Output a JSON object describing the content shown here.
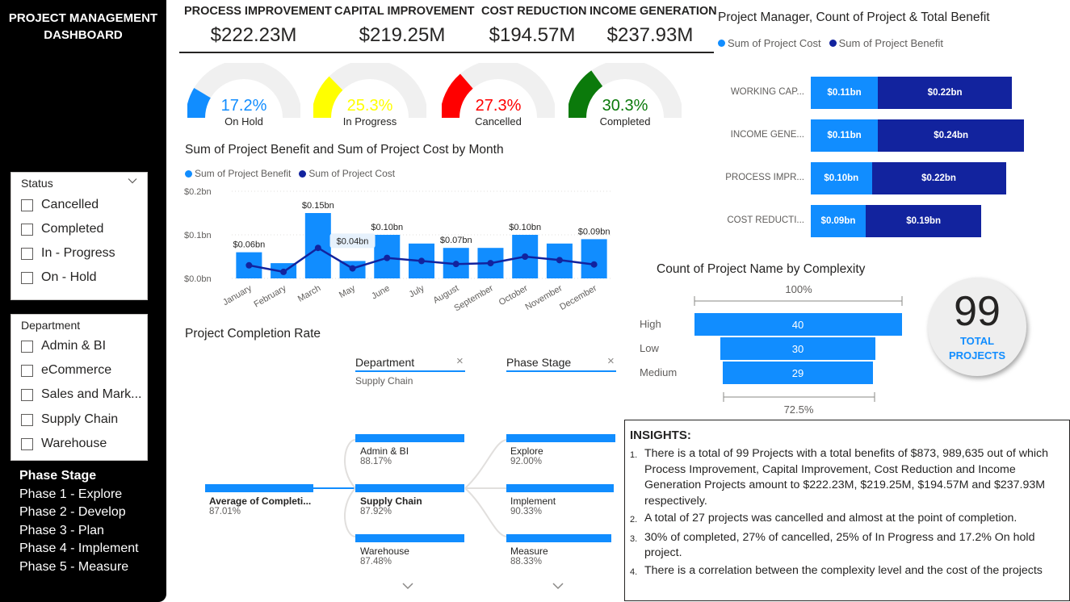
{
  "sidebar": {
    "title_line1": "PROJECT MANAGEMENT",
    "title_line2": "DASHBOARD",
    "status_slicer": {
      "header": "Status",
      "items": [
        {
          "label": "Cancelled"
        },
        {
          "label": "Completed"
        },
        {
          "label": "In - Progress"
        },
        {
          "label": "On - Hold"
        }
      ]
    },
    "department_slicer": {
      "header": "Department",
      "items": [
        {
          "label": "Admin & BI"
        },
        {
          "label": "eCommerce"
        },
        {
          "label": "Sales and Mark..."
        },
        {
          "label": "Supply Chain"
        },
        {
          "label": "Warehouse"
        }
      ]
    },
    "phase_stage": {
      "title": "Phase Stage",
      "items": [
        "Phase 1 - Explore",
        "Phase 2 - Develop",
        "Phase 3 - Plan",
        "Phase 4 - Implement",
        "Phase 5 - Measure"
      ]
    }
  },
  "kpis": [
    {
      "label": "PROCESS IMPROVEMENT",
      "value": "$222.23M"
    },
    {
      "label": "CAPITAL IMPROVEMENT",
      "value": "$219.25M"
    },
    {
      "label": "COST REDUCTION",
      "value": "$194.57M"
    },
    {
      "label": "INCOME GENERATION",
      "value": "$237.93M"
    }
  ],
  "gauges": [
    {
      "pct": "17.2%",
      "label": "On Hold",
      "fraction": 0.172,
      "color": "#118dff"
    },
    {
      "pct": "25.3%",
      "label": "In Progress",
      "fraction": 0.253,
      "color": "#ffff00"
    },
    {
      "pct": "27.3%",
      "label": "Cancelled",
      "fraction": 0.273,
      "color": "#ff0000"
    },
    {
      "pct": "30.3%",
      "label": "Completed",
      "fraction": 0.303,
      "color": "#0b7a0b"
    }
  ],
  "month_chart": {
    "title": "Sum of Project Benefit and Sum of Project Cost by Month",
    "legend": [
      "Sum of  Project Benefit",
      "Sum of  Project Cost"
    ]
  },
  "manager_chart": {
    "title": "Project Manager, Count of Project & Total Benefit",
    "legend": [
      "Sum of  Project Cost",
      "Sum of  Project Benefit"
    ]
  },
  "complexity_chart": {
    "title": "Count of Project Name by Complexity",
    "top_pct": "100%",
    "bottom_pct": "72.5%"
  },
  "total_projects": {
    "value": "99",
    "label_line1": "TOTAL",
    "label_line2": "PROJECTS"
  },
  "completion": {
    "title": "Project Completion Rate",
    "dept_header": "Department",
    "dept_filter": "Supply Chain",
    "phase_header": "Phase Stage",
    "close_glyph": "×",
    "root": {
      "name": "Average of Completi...",
      "value": "87.01%"
    },
    "departments": [
      {
        "name": "Admin & BI",
        "value": "88.17%"
      },
      {
        "name": "Supply Chain",
        "value": "87.92%"
      },
      {
        "name": "Warehouse",
        "value": "87.48%"
      }
    ],
    "phases": [
      {
        "name": "Explore",
        "value": "92.00%"
      },
      {
        "name": "Implement",
        "value": "90.33%"
      },
      {
        "name": "Measure",
        "value": "88.33%"
      }
    ]
  },
  "insights": {
    "title": "INSIGHTS:",
    "items": [
      "There is a total of 99 Projects with a total benefits of $873, 989,635 out of which Process Improvement, Capital Improvement, Cost Reduction and Income Generation Projects amount to $222.23M, $219.25M, $194.57M and $237.93M respectively.",
      "A total of 27 projects was cancelled and almost at the point of completion.",
      "30% of completed, 27% of cancelled, 25% of In Progress and 17.2% On hold project.",
      "There is a correlation between the complexity level and the cost of the projects"
    ]
  },
  "colors": {
    "accent_light": "#118dff",
    "accent_dark": "#12239e",
    "gauge_track": "#f0f0f0"
  },
  "chart_data": [
    {
      "type": "bar",
      "title": "Sum of Project Benefit and Sum of Project Cost by Month",
      "categories": [
        "January",
        "February",
        "March",
        "May",
        "June",
        "July",
        "August",
        "September",
        "October",
        "November",
        "December"
      ],
      "series": [
        {
          "name": "Sum of  Project Benefit",
          "kind": "bar",
          "color": "#118dff",
          "values": [
            0.06,
            0.035,
            0.15,
            0.04,
            0.1,
            0.08,
            0.07,
            0.07,
            0.1,
            0.08,
            0.09
          ]
        },
        {
          "name": "Sum of  Project Cost",
          "kind": "line",
          "color": "#12239e",
          "values": [
            0.03,
            0.015,
            0.07,
            0.023,
            0.047,
            0.04,
            0.033,
            0.035,
            0.05,
            0.042,
            0.032
          ]
        }
      ],
      "data_labels": [
        {
          "index": 0,
          "text": "$0.06bn"
        },
        {
          "index": 2,
          "text": "$0.15bn"
        },
        {
          "index": 3,
          "text": "$0.04bn"
        },
        {
          "index": 4,
          "text": "$0.10bn"
        },
        {
          "index": 6,
          "text": "$0.07bn"
        },
        {
          "index": 8,
          "text": "$0.10bn"
        },
        {
          "index": 10,
          "text": "$0.09bn"
        }
      ],
      "y_ticks": [
        "$0.0bn",
        "$0.1bn",
        "$0.2bn"
      ],
      "ylim": [
        0,
        0.2
      ],
      "grid": true,
      "legend_position": "top-left"
    },
    {
      "type": "bar",
      "orientation": "horizontal-stacked",
      "title": "Project Manager, Count of Project & Total Benefit",
      "categories": [
        "WORKING CAP...",
        "INCOME GENE...",
        "PROCESS IMPR...",
        "COST REDUCTI..."
      ],
      "series": [
        {
          "name": "Sum of  Project Cost",
          "color": "#118dff",
          "values": [
            0.11,
            0.11,
            0.1,
            0.09
          ],
          "labels": [
            "$0.11bn",
            "$0.11bn",
            "$0.10bn",
            "$0.09bn"
          ]
        },
        {
          "name": "Sum of  Project Benefit",
          "color": "#12239e",
          "values": [
            0.22,
            0.24,
            0.22,
            0.19
          ],
          "labels": [
            "$0.22bn",
            "$0.24bn",
            "$0.22bn",
            "$0.19bn"
          ]
        }
      ],
      "legend_position": "top-left"
    },
    {
      "type": "bar",
      "orientation": "funnel",
      "title": "Count of Project Name by Complexity",
      "categories": [
        "High",
        "Low",
        "Medium"
      ],
      "values": [
        40,
        30,
        29
      ]
    }
  ]
}
